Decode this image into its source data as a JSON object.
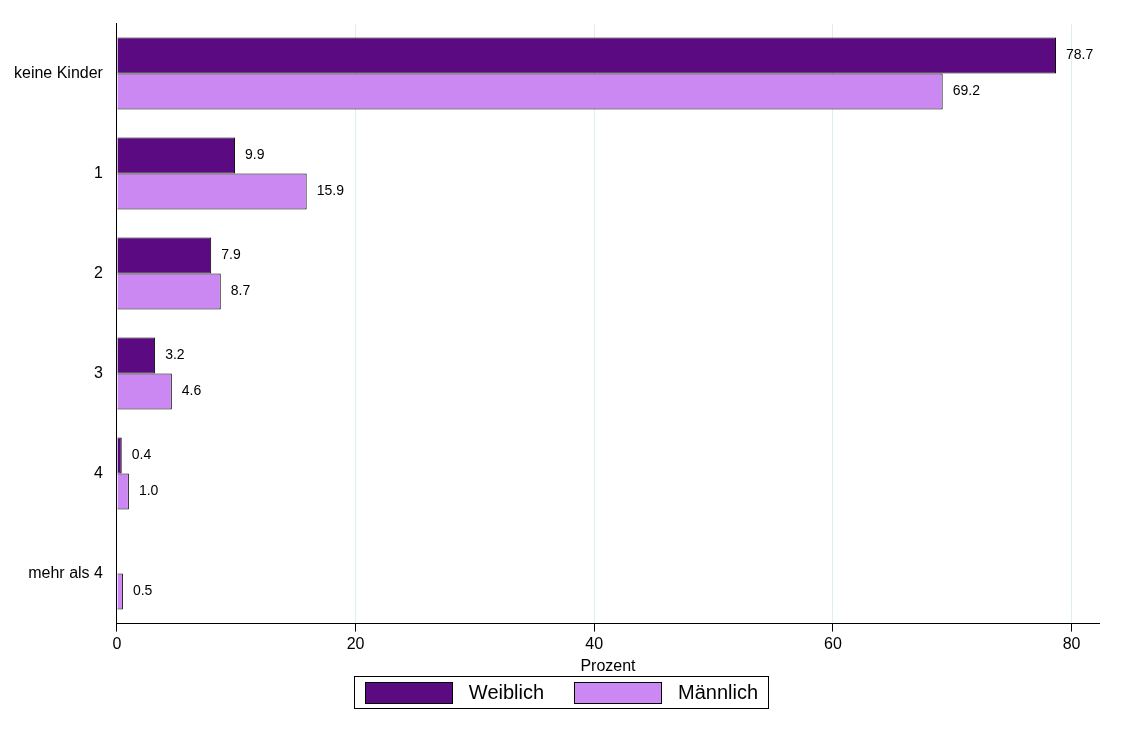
{
  "chart_data": {
    "type": "bar",
    "orientation": "horizontal",
    "xlabel": "Prozent",
    "categories": [
      "keine Kinder",
      "1",
      "2",
      "3",
      "4",
      "mehr als 4"
    ],
    "series": [
      {
        "name": "Weiblich",
        "color": "#5c0a82",
        "values": [
          78.7,
          9.9,
          7.9,
          3.2,
          0.4,
          null
        ],
        "value_labels": [
          "78.7",
          "9.9",
          "7.9",
          "3.2",
          "0.4",
          null
        ]
      },
      {
        "name": "Männlich",
        "color": "#cc88f2",
        "values": [
          69.2,
          15.9,
          8.7,
          4.6,
          1.0,
          0.5
        ],
        "value_labels": [
          "69.2",
          "15.9",
          "8.7",
          "4.6",
          "1.0",
          "0.5"
        ]
      }
    ],
    "xlim": [
      0,
      82.3
    ],
    "xticks": [
      0,
      20,
      40,
      60,
      80
    ],
    "grid": "x",
    "legend": "bottom"
  }
}
